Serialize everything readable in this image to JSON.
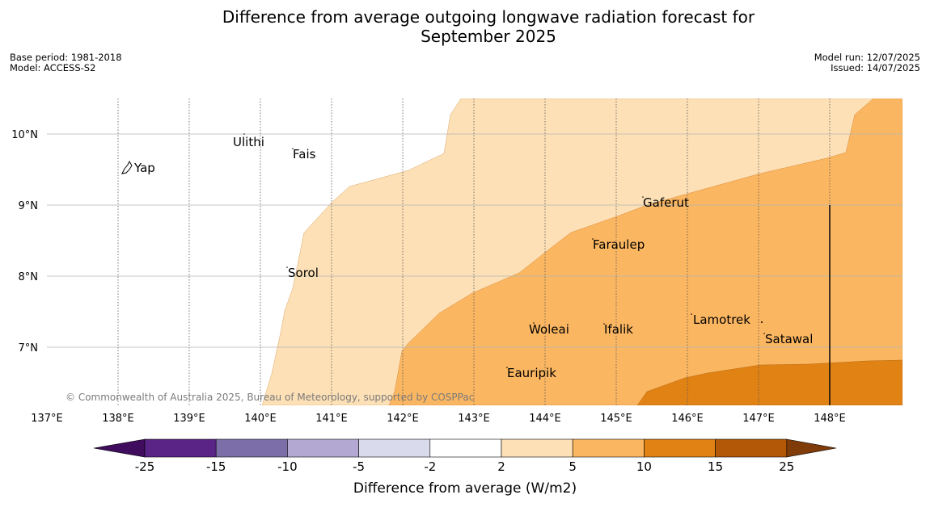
{
  "title": "Difference from average outgoing longwave radiation forecast for September 2025",
  "meta": {
    "base_period": "Base period: 1981-2018",
    "model": "Model: ACCESS-S2",
    "model_run": "Model run: 12/07/2025",
    "issued": "Issued: 14/07/2025"
  },
  "map": {
    "x_ticks": [
      "137°E",
      "138°E",
      "139°E",
      "140°E",
      "141°E",
      "142°E",
      "143°E",
      "144°E",
      "145°E",
      "146°E",
      "147°E",
      "148°E"
    ],
    "y_ticks": [
      "10°N",
      "9°N",
      "8°N",
      "7°N"
    ],
    "places": [
      "Yap",
      "Ulithi",
      "Fais",
      "Gaferut",
      "Faraulep",
      "Sorol",
      "Woleai",
      "Ifalik",
      "Lamotrek",
      "Satawal",
      "Eauripik"
    ],
    "copyright": "© Commonwealth of Australia 2025, Bureau of Meteorology, supported by COSPPac"
  },
  "colorbar": {
    "ticks": [
      "-25",
      "-15",
      "-10",
      "-5",
      "-2",
      "2",
      "5",
      "10",
      "15",
      "25"
    ],
    "label": "Difference from average (W/m2)",
    "colors": [
      "#3f0c5e",
      "#5a2487",
      "#7c6fa9",
      "#b3a8d2",
      "#d9daeb",
      "#ffffff",
      "#fde0b6",
      "#fbb661",
      "#e08214",
      "#b35806",
      "#7f3b08"
    ]
  }
}
